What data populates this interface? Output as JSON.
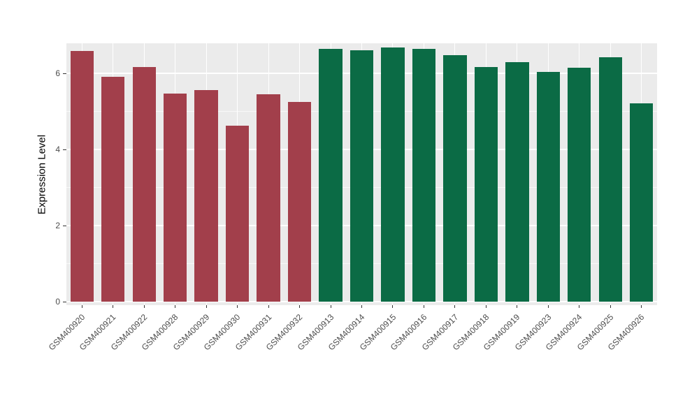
{
  "chart_data": {
    "type": "bar",
    "title": "",
    "xlabel": "",
    "ylabel": "Expression Level",
    "ylim": [
      0,
      6.9
    ],
    "yticks_major": [
      0,
      2,
      4,
      6
    ],
    "yticks_minor": [
      1,
      3,
      5
    ],
    "categories": [
      "GSM400920",
      "GSM400921",
      "GSM400922",
      "GSM400928",
      "GSM400929",
      "GSM400930",
      "GSM400931",
      "GSM400932",
      "GSM400913",
      "GSM400914",
      "GSM400915",
      "GSM400916",
      "GSM400917",
      "GSM400918",
      "GSM400919",
      "GSM400923",
      "GSM400924",
      "GSM400925",
      "GSM400926"
    ],
    "values": [
      6.58,
      5.9,
      6.16,
      5.46,
      5.56,
      4.62,
      5.45,
      5.25,
      6.64,
      6.6,
      6.68,
      6.64,
      6.48,
      6.16,
      6.3,
      6.03,
      6.14,
      6.43,
      5.22
    ],
    "bar_colors": [
      "#A23F4B",
      "#A23F4B",
      "#A23F4B",
      "#A23F4B",
      "#A23F4B",
      "#A23F4B",
      "#A23F4B",
      "#A23F4B",
      "#0B6B45",
      "#0B6B45",
      "#0B6B45",
      "#0B6B45",
      "#0B6B45",
      "#0B6B45",
      "#0B6B45",
      "#0B6B45",
      "#0B6B45",
      "#0B6B45",
      "#0B6B45"
    ],
    "panel_background": "#EBEBEB",
    "gridline_color": "#FFFFFF",
    "axis_text_color": "#4D4D4D",
    "legend": "none",
    "grid": "on"
  }
}
